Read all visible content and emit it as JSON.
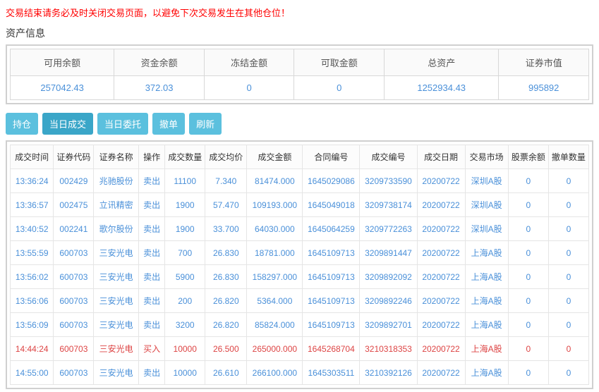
{
  "warning_text": "交易结束请务必及时关闭交易页面，以避免下次交易发生在其他仓位！",
  "section_title": "资产信息",
  "asset": {
    "headers": [
      "可用余额",
      "资金余额",
      "冻结金额",
      "可取金额",
      "总资产",
      "证券市值"
    ],
    "values": [
      "257042.43",
      "372.03",
      "0",
      "0",
      "1252934.43",
      "995892"
    ]
  },
  "tabs": [
    "持仓",
    "当日成交",
    "当日委托",
    "撤单",
    "刷新"
  ],
  "active_tab": 1,
  "trade": {
    "headers": [
      "成交时间",
      "证券代码",
      "证券名称",
      "操作",
      "成交数量",
      "成交均价",
      "成交金额",
      "合同编号",
      "成交编号",
      "成交日期",
      "交易市场",
      "股票余额",
      "撤单数量"
    ],
    "rows": [
      {
        "time": "13:36:24",
        "code": "002429",
        "name": "兆驰股份",
        "op": "卖出",
        "qty": "11100",
        "price": "7.340",
        "amt": "81474.000",
        "cno": "1645029086",
        "tno": "3209733590",
        "date": "20200722",
        "mkt": "深圳A股",
        "bal": "0",
        "cancel": "0",
        "op_buy": false
      },
      {
        "time": "13:36:57",
        "code": "002475",
        "name": "立讯精密",
        "op": "卖出",
        "qty": "1900",
        "price": "57.470",
        "amt": "109193.000",
        "cno": "1645049018",
        "tno": "3209738174",
        "date": "20200722",
        "mkt": "深圳A股",
        "bal": "0",
        "cancel": "0",
        "op_buy": false
      },
      {
        "time": "13:40:52",
        "code": "002241",
        "name": "歌尔股份",
        "op": "卖出",
        "qty": "1900",
        "price": "33.700",
        "amt": "64030.000",
        "cno": "1645064259",
        "tno": "3209772263",
        "date": "20200722",
        "mkt": "深圳A股",
        "bal": "0",
        "cancel": "0",
        "op_buy": false
      },
      {
        "time": "13:55:59",
        "code": "600703",
        "name": "三安光电",
        "op": "卖出",
        "qty": "700",
        "price": "26.830",
        "amt": "18781.000",
        "cno": "1645109713",
        "tno": "3209891447",
        "date": "20200722",
        "mkt": "上海A股",
        "bal": "0",
        "cancel": "0",
        "op_buy": false
      },
      {
        "time": "13:56:02",
        "code": "600703",
        "name": "三安光电",
        "op": "卖出",
        "qty": "5900",
        "price": "26.830",
        "amt": "158297.000",
        "cno": "1645109713",
        "tno": "3209892092",
        "date": "20200722",
        "mkt": "上海A股",
        "bal": "0",
        "cancel": "0",
        "op_buy": false
      },
      {
        "time": "13:56:06",
        "code": "600703",
        "name": "三安光电",
        "op": "卖出",
        "qty": "200",
        "price": "26.820",
        "amt": "5364.000",
        "cno": "1645109713",
        "tno": "3209892246",
        "date": "20200722",
        "mkt": "上海A股",
        "bal": "0",
        "cancel": "0",
        "op_buy": false
      },
      {
        "time": "13:56:09",
        "code": "600703",
        "name": "三安光电",
        "op": "卖出",
        "qty": "3200",
        "price": "26.820",
        "amt": "85824.000",
        "cno": "1645109713",
        "tno": "3209892701",
        "date": "20200722",
        "mkt": "上海A股",
        "bal": "0",
        "cancel": "0",
        "op_buy": false
      },
      {
        "time": "14:44:24",
        "code": "600703",
        "name": "三安光电",
        "op": "买入",
        "qty": "10000",
        "price": "26.500",
        "amt": "265000.000",
        "cno": "1645268704",
        "tno": "3210318353",
        "date": "20200722",
        "mkt": "上海A股",
        "bal": "0",
        "cancel": "0",
        "op_buy": true
      },
      {
        "time": "14:55:00",
        "code": "600703",
        "name": "三安光电",
        "op": "卖出",
        "qty": "10000",
        "price": "26.610",
        "amt": "266100.000",
        "cno": "1645303511",
        "tno": "3210392126",
        "date": "20200722",
        "mkt": "上海A股",
        "bal": "0",
        "cancel": "0",
        "op_buy": false
      }
    ]
  }
}
